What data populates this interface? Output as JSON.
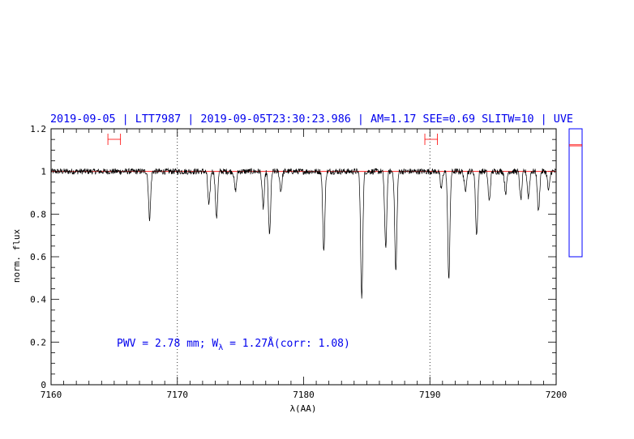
{
  "chart_data": {
    "type": "line",
    "title": "2019-09-05 | LTT7987 | 2019-09-05T23:30:23.986 | AM=1.17  SEE=0.69  SLITW=10 | UVE",
    "xlabel": "λ(AA)",
    "ylabel": "norm. flux",
    "xlim": [
      7160,
      7200
    ],
    "ylim": [
      0,
      1.2
    ],
    "xticks": [
      "7160",
      "7170",
      "7180",
      "7190",
      "7200"
    ],
    "yticks": [
      "0",
      "0.2",
      "0.4",
      "0.6",
      "0.8",
      "1",
      "1.2"
    ],
    "continuum_level": 1.0,
    "vertical_markers": [
      7170,
      7190
    ],
    "continuum_windows": [
      [
        7164.5,
        7165.5
      ],
      [
        7189.6,
        7190.6
      ]
    ],
    "absorption_lines": [
      {
        "x": 7167.8,
        "depth": 0.22
      },
      {
        "x": 7172.5,
        "depth": 0.16
      },
      {
        "x": 7173.1,
        "depth": 0.22
      },
      {
        "x": 7174.6,
        "depth": 0.09
      },
      {
        "x": 7176.8,
        "depth": 0.17
      },
      {
        "x": 7177.3,
        "depth": 0.3
      },
      {
        "x": 7178.2,
        "depth": 0.09
      },
      {
        "x": 7181.6,
        "depth": 0.37
      },
      {
        "x": 7184.6,
        "depth": 0.59
      },
      {
        "x": 7186.5,
        "depth": 0.36
      },
      {
        "x": 7187.3,
        "depth": 0.47
      },
      {
        "x": 7190.9,
        "depth": 0.08
      },
      {
        "x": 7191.5,
        "depth": 0.5
      },
      {
        "x": 7192.8,
        "depth": 0.09
      },
      {
        "x": 7193.7,
        "depth": 0.3
      },
      {
        "x": 7194.7,
        "depth": 0.14
      },
      {
        "x": 7196.0,
        "depth": 0.1
      },
      {
        "x": 7197.2,
        "depth": 0.13
      },
      {
        "x": 7197.8,
        "depth": 0.12
      },
      {
        "x": 7198.6,
        "depth": 0.19
      },
      {
        "x": 7199.4,
        "depth": 0.09
      }
    ],
    "annotation": {
      "pre": "PWV = 2.78 mm; W",
      "sub": "λ",
      "post": " = 1.27Å(corr: 1.08)"
    },
    "side_panel": {
      "ylim": [
        0,
        1.2
      ],
      "lines": [
        1.04,
        1.05
      ]
    },
    "colors": {
      "spectrum": "#000000",
      "continuum": "#ff0000",
      "title": "#0000ee",
      "frame": "#000000",
      "side_frame": "#0000ff"
    }
  }
}
